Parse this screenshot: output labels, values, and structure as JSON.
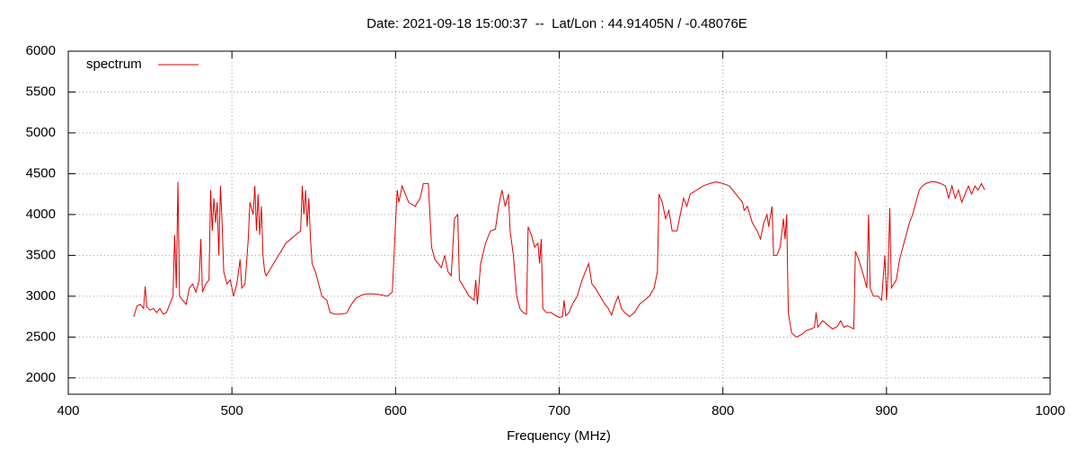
{
  "chart_data": {
    "type": "line",
    "title": "Date: 2021-09-18 15:00:37  --  Lat/Lon : 44.91405N / -0.48076E",
    "x_label": "Frequency (MHz)",
    "xlim": [
      400,
      1000
    ],
    "xticks": [
      400,
      500,
      600,
      700,
      800,
      900,
      1000
    ],
    "ylim": [
      1800,
      6000
    ],
    "yticks": [
      2000,
      2500,
      3000,
      3500,
      4000,
      4500,
      5000,
      5500,
      6000
    ],
    "grid": true,
    "legend": "top-left",
    "x": [
      440,
      442,
      444,
      446,
      447,
      448,
      450,
      452,
      454,
      456,
      458,
      460,
      462,
      464,
      465,
      466,
      467,
      468,
      470,
      472,
      474,
      476,
      478,
      480,
      481,
      482,
      484,
      486,
      487,
      488,
      489,
      490,
      491,
      492,
      493,
      494,
      495,
      497,
      499,
      501,
      503,
      505,
      506,
      508,
      510,
      511,
      513,
      514,
      515,
      516,
      517,
      518,
      519,
      520,
      521,
      524,
      527,
      530,
      533,
      536,
      539,
      542,
      543,
      544,
      545,
      546,
      547,
      548,
      549,
      551,
      553,
      555,
      558,
      560,
      563,
      566,
      570,
      573,
      576,
      580,
      585,
      590,
      595,
      598,
      600,
      601,
      602,
      604,
      606,
      608,
      612,
      615,
      617,
      620,
      621,
      622,
      624,
      626,
      628,
      630,
      632,
      634,
      636,
      638,
      639,
      642,
      645,
      648,
      649,
      650,
      652,
      655,
      658,
      661,
      663,
      665,
      667,
      669,
      670,
      672,
      674,
      676,
      678,
      680,
      681,
      683,
      685,
      687,
      688,
      689,
      690,
      692,
      695,
      698,
      700,
      702,
      703,
      704,
      706,
      708,
      711,
      714,
      716,
      718,
      720,
      722,
      725,
      728,
      730,
      732,
      734,
      736,
      738,
      740,
      743,
      746,
      749,
      752,
      755,
      758,
      760,
      761,
      763,
      765,
      767,
      769,
      772,
      774,
      776,
      778,
      780,
      784,
      788,
      792,
      796,
      800,
      804,
      808,
      812,
      813,
      815,
      818,
      821,
      823,
      825,
      827,
      828,
      830,
      831,
      833,
      835,
      837,
      838,
      839,
      840,
      842,
      845,
      848,
      851,
      854,
      856,
      857,
      858,
      861,
      864,
      867,
      870,
      872,
      874,
      876,
      878,
      880,
      881,
      883,
      886,
      888,
      889,
      890,
      892,
      895,
      897,
      899,
      900,
      901,
      902,
      903,
      906,
      908,
      910,
      912,
      914,
      916,
      918,
      920,
      922,
      924,
      927,
      930,
      933,
      936,
      938,
      940,
      942,
      944,
      946,
      948,
      950,
      952,
      954,
      956,
      958,
      960
    ],
    "series": [
      {
        "name": "spectrum",
        "color": "#e00000",
        "values": [
          2750,
          2880,
          2900,
          2850,
          3120,
          2870,
          2830,
          2850,
          2800,
          2850,
          2780,
          2800,
          2900,
          3000,
          3750,
          3100,
          4400,
          3000,
          2950,
          2900,
          3100,
          3150,
          3050,
          3200,
          3700,
          3050,
          3150,
          3200,
          4300,
          3800,
          4200,
          3900,
          4150,
          3500,
          4350,
          3900,
          3300,
          3150,
          3200,
          3000,
          3150,
          3450,
          3100,
          3150,
          3700,
          4150,
          4000,
          4350,
          3800,
          4250,
          3750,
          4100,
          3500,
          3300,
          3250,
          3350,
          3450,
          3550,
          3650,
          3700,
          3750,
          3800,
          4350,
          4000,
          4300,
          3850,
          4200,
          3700,
          3400,
          3300,
          3150,
          3000,
          2950,
          2800,
          2780,
          2780,
          2790,
          2900,
          2980,
          3020,
          3030,
          3020,
          3000,
          3050,
          3900,
          4300,
          4150,
          4350,
          4250,
          4150,
          4100,
          4200,
          4380,
          4380,
          4000,
          3600,
          3450,
          3400,
          3350,
          3500,
          3300,
          3250,
          3950,
          4000,
          3200,
          3100,
          3000,
          2950,
          3200,
          2900,
          3400,
          3650,
          3800,
          3820,
          4100,
          4300,
          4100,
          4250,
          3800,
          3500,
          3000,
          2850,
          2800,
          2780,
          3850,
          3750,
          3600,
          3650,
          3400,
          3700,
          2850,
          2800,
          2800,
          2760,
          2740,
          2750,
          2950,
          2760,
          2800,
          2900,
          3000,
          3200,
          3300,
          3400,
          3150,
          3100,
          3000,
          2900,
          2850,
          2770,
          2900,
          3000,
          2850,
          2800,
          2750,
          2800,
          2900,
          2950,
          3000,
          3100,
          3300,
          4250,
          4150,
          3950,
          4050,
          3800,
          3800,
          4000,
          4200,
          4100,
          4250,
          4300,
          4350,
          4380,
          4400,
          4380,
          4350,
          4250,
          4150,
          4050,
          4100,
          3900,
          3800,
          3700,
          3900,
          4000,
          3850,
          4100,
          3500,
          3500,
          3600,
          3950,
          3700,
          4000,
          2800,
          2550,
          2500,
          2530,
          2580,
          2600,
          2620,
          2800,
          2620,
          2700,
          2650,
          2600,
          2630,
          2700,
          2620,
          2640,
          2620,
          2600,
          3550,
          3450,
          3250,
          3100,
          4000,
          3100,
          3000,
          3000,
          2950,
          3500,
          2950,
          3300,
          4080,
          3100,
          3200,
          3450,
          3600,
          3750,
          3900,
          4000,
          4150,
          4300,
          4350,
          4380,
          4400,
          4400,
          4380,
          4350,
          4200,
          4350,
          4200,
          4300,
          4150,
          4250,
          4350,
          4250,
          4350,
          4300,
          4380,
          4300
        ]
      }
    ]
  }
}
